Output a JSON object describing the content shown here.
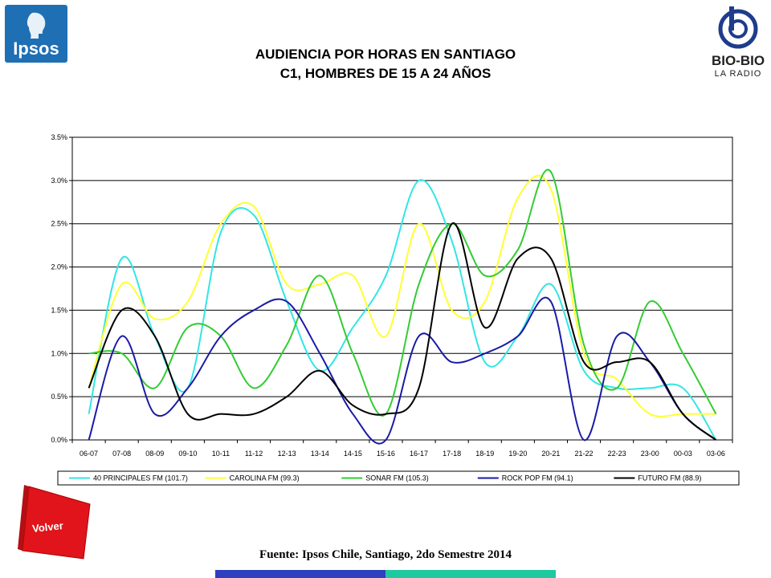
{
  "header": {
    "title_line1": "AUDIENCIA POR HORAS EN SANTIAGO",
    "title_line2": "C1, HOMBRES DE 15 A 24 AÑOS"
  },
  "logos": {
    "ipsos": "Ipsos",
    "biobio": "BIO-BIO",
    "biobio_sub": "LA RADIO"
  },
  "chart_data": {
    "type": "line",
    "title": "",
    "xlabel": "",
    "ylabel": "",
    "ylim": [
      0,
      3.5
    ],
    "y_ticks": [
      "0.0%",
      "0.5%",
      "1.0%",
      "1.5%",
      "2.0%",
      "2.5%",
      "3.0%",
      "3.5%"
    ],
    "grid": true,
    "legend_position": "bottom",
    "categories": [
      "06-07",
      "07-08",
      "08-09",
      "09-10",
      "10-11",
      "11-12",
      "12-13",
      "13-14",
      "14-15",
      "15-16",
      "16-17",
      "17-18",
      "18-19",
      "19-20",
      "20-21",
      "21-22",
      "22-23",
      "23-00",
      "00-03",
      "03-06"
    ],
    "series": [
      {
        "name": "40 PRINCIPALES FM (101.7)",
        "color": "#33e5e5",
        "values": [
          0.3,
          2.1,
          1.2,
          0.6,
          2.4,
          2.6,
          1.6,
          0.8,
          1.3,
          1.9,
          3.0,
          2.3,
          0.9,
          1.2,
          1.8,
          0.8,
          0.6,
          0.6,
          0.6,
          0.0
        ]
      },
      {
        "name": "CAROLINA FM (99.3)",
        "color": "#ffff33",
        "values": [
          0.6,
          1.8,
          1.4,
          1.6,
          2.5,
          2.7,
          1.8,
          1.8,
          1.9,
          1.2,
          2.5,
          1.5,
          1.6,
          2.8,
          2.9,
          1.0,
          0.7,
          0.3,
          0.3,
          0.3
        ]
      },
      {
        "name": "SONAR FM (105.3)",
        "color": "#33cc33",
        "values": [
          1.0,
          1.0,
          0.6,
          1.3,
          1.2,
          0.6,
          1.1,
          1.9,
          1.0,
          0.3,
          1.8,
          2.5,
          1.9,
          2.2,
          3.1,
          1.1,
          0.6,
          1.6,
          1.0,
          0.3
        ]
      },
      {
        "name": "ROCK  POP FM (94.1)",
        "color": "#1a1aa6",
        "values": [
          0.0,
          1.2,
          0.3,
          0.6,
          1.2,
          1.5,
          1.6,
          1.0,
          0.3,
          0.0,
          1.2,
          0.9,
          1.0,
          1.2,
          1.6,
          0.0,
          1.2,
          0.9,
          0.3,
          0.0
        ]
      },
      {
        "name": "FUTURO FM (88.9)",
        "color": "#000000",
        "values": [
          0.6,
          1.5,
          1.2,
          0.3,
          0.3,
          0.3,
          0.5,
          0.8,
          0.4,
          0.3,
          0.6,
          2.5,
          1.3,
          2.1,
          2.1,
          0.9,
          0.9,
          0.9,
          0.3,
          0.0
        ]
      }
    ]
  },
  "navigation": {
    "volver_label": "Volver"
  },
  "footer": {
    "source": "Fuente: Ipsos Chile, Santiago, 2do Semestre 2014"
  },
  "colors": {
    "ipsos_blue": "#1f6fb4",
    "volver_red": "#e0141a",
    "bar_left": "#2e3fbf",
    "bar_right": "#1fc9a0"
  }
}
